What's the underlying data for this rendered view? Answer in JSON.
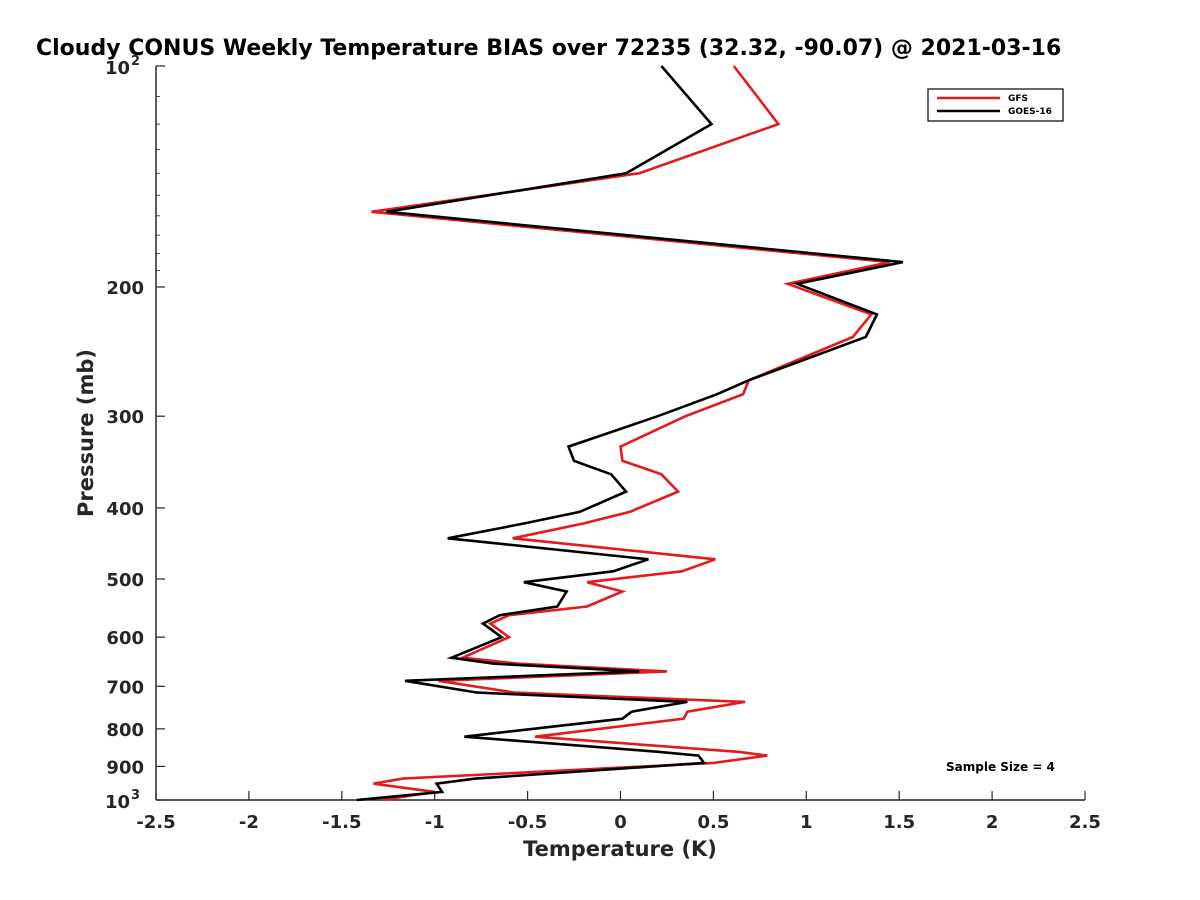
{
  "chart_data": {
    "type": "line",
    "title": "Cloudy CONUS Weekly Temperature BIAS over 72235 (32.32, -90.07) @ 2021-03-16",
    "xlabel": "Temperature (K)",
    "ylabel": "Pressure (mb)",
    "xlim": [
      -2.5,
      2.5
    ],
    "ylim": [
      100,
      1000
    ],
    "yscale": "log",
    "yreversed": true,
    "x_ticks": [
      "-2.5",
      "-2",
      "-1.5",
      "-1",
      "-0.5",
      "0",
      "0.5",
      "1",
      "1.5",
      "2",
      "2.5"
    ],
    "x_tick_values": [
      -2.5,
      -2,
      -1.5,
      -1,
      -0.5,
      0,
      0.5,
      1,
      1.5,
      2,
      2.5
    ],
    "y_ticks": [
      {
        "value": 100,
        "base": "10",
        "exp": "2"
      },
      {
        "value": 200,
        "label": "200"
      },
      {
        "value": 300,
        "label": "300"
      },
      {
        "value": 400,
        "label": "400"
      },
      {
        "value": 500,
        "label": "500"
      },
      {
        "value": 600,
        "label": "600"
      },
      {
        "value": 700,
        "label": "700"
      },
      {
        "value": 800,
        "label": "800"
      },
      {
        "value": 900,
        "label": "900"
      },
      {
        "value": 1000,
        "base": "10",
        "exp": "3"
      }
    ],
    "legend_position": "top-right",
    "annotation": "Sample Size = 4",
    "series": [
      {
        "name": "GFS",
        "color": "#e41a1c",
        "points": [
          [
            0.61,
            100
          ],
          [
            0.85,
            120
          ],
          [
            0.1,
            140
          ],
          [
            -1.34,
            158
          ],
          [
            1.45,
            185
          ],
          [
            0.9,
            198
          ],
          [
            1.35,
            218
          ],
          [
            1.25,
            234
          ],
          [
            0.69,
            268
          ],
          [
            0.66,
            280
          ],
          [
            0.35,
            300
          ],
          [
            0.0,
            330
          ],
          [
            0.01,
            345
          ],
          [
            0.22,
            360
          ],
          [
            0.31,
            380
          ],
          [
            0.05,
            405
          ],
          [
            -0.2,
            420
          ],
          [
            -0.58,
            440
          ],
          [
            0.51,
            470
          ],
          [
            0.33,
            488
          ],
          [
            -0.18,
            505
          ],
          [
            0.01,
            520
          ],
          [
            -0.18,
            545
          ],
          [
            -0.6,
            560
          ],
          [
            -0.7,
            575
          ],
          [
            -0.6,
            600
          ],
          [
            -0.85,
            640
          ],
          [
            -0.55,
            652
          ],
          [
            0.25,
            668
          ],
          [
            -0.98,
            688
          ],
          [
            -0.57,
            714
          ],
          [
            0.67,
            735
          ],
          [
            0.36,
            758
          ],
          [
            0.34,
            775
          ],
          [
            -0.46,
            820
          ],
          [
            0.64,
            860
          ],
          [
            0.79,
            870
          ],
          [
            0.5,
            890
          ],
          [
            -1.17,
            935
          ],
          [
            -1.33,
            950
          ],
          [
            -1.0,
            975
          ],
          [
            -1.28,
            1000
          ]
        ]
      },
      {
        "name": "GOES-16",
        "color": "#000000",
        "points": [
          [
            0.22,
            100
          ],
          [
            0.49,
            120
          ],
          [
            0.03,
            140
          ],
          [
            -1.26,
            158
          ],
          [
            1.52,
            185
          ],
          [
            0.95,
            198
          ],
          [
            1.38,
            218
          ],
          [
            1.32,
            234
          ],
          [
            0.69,
            268
          ],
          [
            0.52,
            280
          ],
          [
            0.2,
            300
          ],
          [
            -0.28,
            330
          ],
          [
            -0.25,
            345
          ],
          [
            -0.05,
            360
          ],
          [
            0.03,
            380
          ],
          [
            -0.22,
            405
          ],
          [
            -0.52,
            420
          ],
          [
            -0.93,
            440
          ],
          [
            0.15,
            470
          ],
          [
            -0.04,
            488
          ],
          [
            -0.52,
            505
          ],
          [
            -0.29,
            520
          ],
          [
            -0.34,
            545
          ],
          [
            -0.65,
            560
          ],
          [
            -0.74,
            575
          ],
          [
            -0.64,
            600
          ],
          [
            -0.91,
            640
          ],
          [
            -0.68,
            652
          ],
          [
            0.1,
            668
          ],
          [
            -1.16,
            688
          ],
          [
            -0.77,
            714
          ],
          [
            0.36,
            735
          ],
          [
            0.06,
            758
          ],
          [
            0.01,
            775
          ],
          [
            -0.84,
            820
          ],
          [
            0.21,
            860
          ],
          [
            0.42,
            870
          ],
          [
            0.45,
            890
          ],
          [
            -0.78,
            935
          ],
          [
            -0.99,
            950
          ],
          [
            -0.96,
            975
          ],
          [
            -1.42,
            1000
          ]
        ]
      }
    ]
  }
}
